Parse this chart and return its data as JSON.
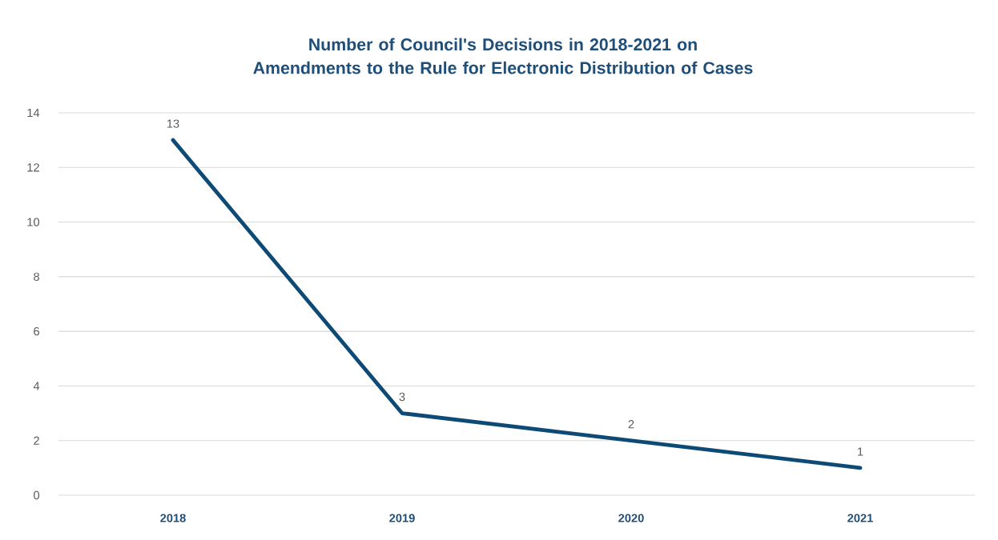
{
  "chart_data": {
    "type": "line",
    "title": "Number of Council's Decisions in 2018-2021 on Amendments to the Rule for Electronic Distribution of Cases",
    "categories": [
      "2018",
      "2019",
      "2020",
      "2021"
    ],
    "values": [
      13,
      3,
      2,
      1
    ],
    "color": "#0e4a76",
    "ylim": [
      0,
      14
    ],
    "yticks": [
      0,
      2,
      4,
      6,
      8,
      10,
      12,
      14
    ],
    "grid": "y",
    "marker": "none",
    "line_style": "solid",
    "data_labels": true
  }
}
